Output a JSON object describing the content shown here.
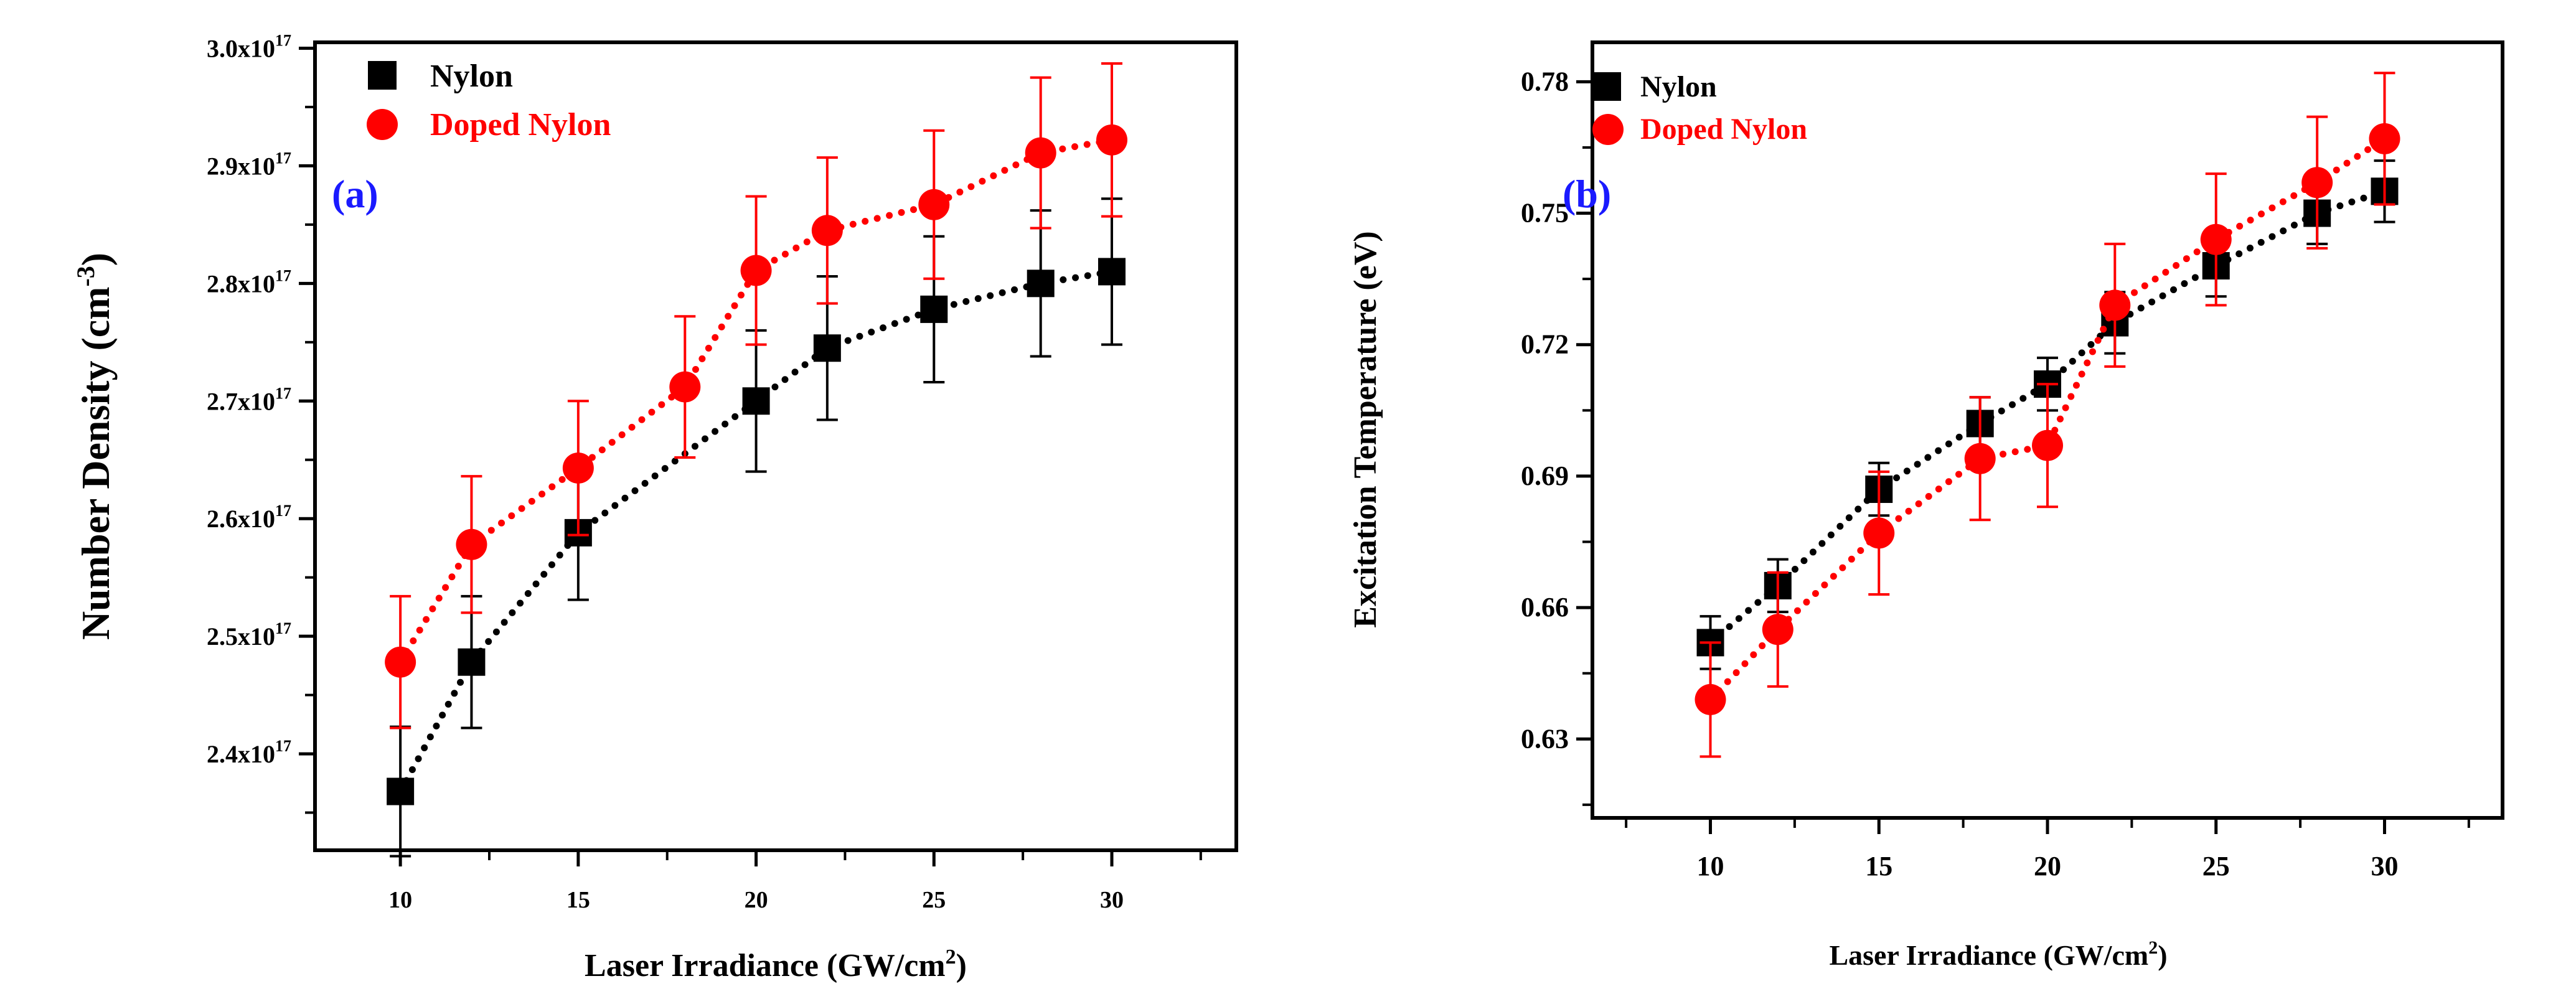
{
  "colors": {
    "nylon": "#000000",
    "doped": "#ff0000",
    "panel_label": "#1a1aff"
  },
  "chart_data": [
    {
      "type": "scatter",
      "panel_label": "(a)",
      "xlabel": "Laser Irradiance (GW/cm",
      "xlabel_sup": "2",
      "xlabel_end": ")",
      "ylabel": "Number Density (cm",
      "ylabel_sup": "-3",
      "ylabel_end": ")",
      "xlim": [
        7.6,
        33.5
      ],
      "ylim": [
        2.318,
        3.005
      ],
      "xticks": [
        10,
        15,
        20,
        25,
        30
      ],
      "xtick_labels": [
        "10",
        "15",
        "20",
        "25",
        "30"
      ],
      "yticks": [
        2.4,
        2.5,
        2.6,
        2.7,
        2.8,
        2.9,
        3.0
      ],
      "ytick_mantissas": [
        "2.4x10",
        "2.5x10",
        "2.6x10",
        "2.7x10",
        "2.8x10",
        "2.9x10",
        "3.0x10"
      ],
      "ytick_exponent": "17",
      "yunits_multiplier": "x10^17 cm^-3",
      "legend": [
        "Nylon",
        "Doped Nylon"
      ],
      "legend_position": "top-left",
      "series": [
        {
          "name": "Nylon",
          "marker": "square",
          "x": [
            10,
            12,
            15,
            20,
            22,
            25,
            28,
            30
          ],
          "y": [
            2.368,
            2.478,
            2.588,
            2.7,
            2.745,
            2.778,
            2.8,
            2.81
          ],
          "err": [
            0.055,
            0.056,
            0.057,
            0.06,
            0.061,
            0.062,
            0.062,
            0.062
          ]
        },
        {
          "name": "Doped Nylon",
          "marker": "circle",
          "x": [
            10,
            12,
            15,
            18,
            20,
            22,
            25,
            28,
            30
          ],
          "y": [
            2.478,
            2.578,
            2.643,
            2.712,
            2.811,
            2.845,
            2.867,
            2.911,
            2.922
          ],
          "err": [
            0.056,
            0.058,
            0.057,
            0.06,
            0.063,
            0.062,
            0.063,
            0.064,
            0.065
          ]
        }
      ]
    },
    {
      "type": "scatter",
      "panel_label": "(b)",
      "xlabel": "Laser Irradiance (GW/cm",
      "xlabel_sup": "2",
      "xlabel_end": ")",
      "ylabel": "Excitation Temperature (eV)",
      "xlim": [
        6.5,
        33.5
      ],
      "ylim": [
        0.612,
        0.789
      ],
      "xticks": [
        10,
        15,
        20,
        25,
        30
      ],
      "xtick_labels": [
        "10",
        "15",
        "20",
        "25",
        "30"
      ],
      "yticks": [
        0.63,
        0.66,
        0.69,
        0.72,
        0.75,
        0.78
      ],
      "ytick_labels": [
        "0.63",
        "0.66",
        "0.69",
        "0.72",
        "0.75",
        "0.78"
      ],
      "legend": [
        "Nylon",
        "Doped Nylon"
      ],
      "legend_position": "top-left",
      "series": [
        {
          "name": "Nylon",
          "marker": "square",
          "x": [
            10,
            12,
            15,
            18,
            20,
            22,
            25,
            28,
            30
          ],
          "y": [
            0.652,
            0.665,
            0.687,
            0.702,
            0.711,
            0.725,
            0.738,
            0.75,
            0.755
          ],
          "err": [
            0.006,
            0.006,
            0.006,
            0.006,
            0.006,
            0.007,
            0.007,
            0.007,
            0.007
          ]
        },
        {
          "name": "Doped Nylon",
          "marker": "circle",
          "x": [
            10,
            12,
            15,
            18,
            20,
            22,
            25,
            28,
            30
          ],
          "y": [
            0.639,
            0.655,
            0.677,
            0.694,
            0.697,
            0.729,
            0.744,
            0.757,
            0.767
          ],
          "err": [
            0.013,
            0.013,
            0.014,
            0.014,
            0.014,
            0.014,
            0.015,
            0.015,
            0.015
          ]
        }
      ]
    }
  ]
}
